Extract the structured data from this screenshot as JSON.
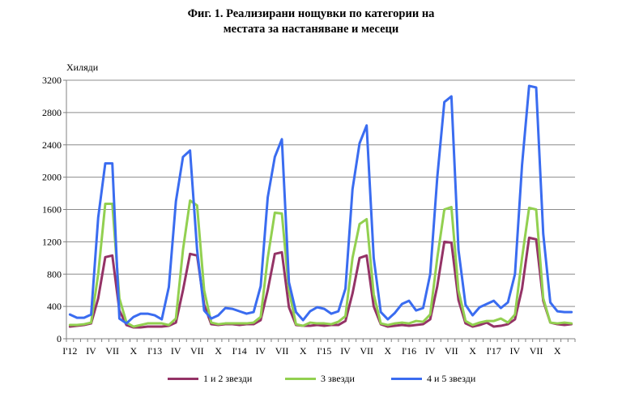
{
  "title_line1": "Фиг. 1. Реализирани нощувки по категории на",
  "title_line2": "местата за настаняване и месеци",
  "chart_data": {
    "type": "line",
    "ylabel": "Хиляди",
    "ylim": [
      0,
      3200
    ],
    "yticks": [
      0,
      400,
      800,
      1200,
      1600,
      2000,
      2400,
      2800,
      3200
    ],
    "grid": true,
    "legend_position": "bottom",
    "x_tick_labels": [
      "І'12",
      "IV",
      "VII",
      "X",
      "І'13",
      "IV",
      "VII",
      "X",
      "І'14",
      "IV",
      "VII",
      "X",
      "І'15",
      "IV",
      "VII",
      "X",
      "І'16",
      "IV",
      "VII",
      "X",
      "І'17",
      "IV",
      "VII",
      "X"
    ],
    "x_months": [
      "2012-01",
      "2012-02",
      "2012-03",
      "2012-04",
      "2012-05",
      "2012-06",
      "2012-07",
      "2012-08",
      "2012-09",
      "2012-10",
      "2012-11",
      "2012-12",
      "2013-01",
      "2013-02",
      "2013-03",
      "2013-04",
      "2013-05",
      "2013-06",
      "2013-07",
      "2013-08",
      "2013-09",
      "2013-10",
      "2013-11",
      "2013-12",
      "2014-01",
      "2014-02",
      "2014-03",
      "2014-04",
      "2014-05",
      "2014-06",
      "2014-07",
      "2014-08",
      "2014-09",
      "2014-10",
      "2014-11",
      "2014-12",
      "2015-01",
      "2015-02",
      "2015-03",
      "2015-04",
      "2015-05",
      "2015-06",
      "2015-07",
      "2015-08",
      "2015-09",
      "2015-10",
      "2015-11",
      "2015-12",
      "2016-01",
      "2016-02",
      "2016-03",
      "2016-04",
      "2016-05",
      "2016-06",
      "2016-07",
      "2016-08",
      "2016-09",
      "2016-10",
      "2016-11",
      "2016-12",
      "2017-01",
      "2017-02",
      "2017-03",
      "2017-04",
      "2017-05",
      "2017-06",
      "2017-07",
      "2017-08",
      "2017-09",
      "2017-10",
      "2017-11",
      "2017-12"
    ],
    "series": [
      {
        "name": "1 и 2 звезди",
        "color": "#943366",
        "values": [
          150,
          160,
          170,
          190,
          500,
          1010,
          1030,
          350,
          170,
          140,
          140,
          150,
          150,
          150,
          160,
          200,
          600,
          1050,
          1030,
          420,
          180,
          170,
          180,
          180,
          170,
          180,
          180,
          230,
          600,
          1050,
          1070,
          390,
          170,
          160,
          160,
          170,
          160,
          170,
          170,
          220,
          560,
          1000,
          1030,
          400,
          180,
          150,
          160,
          170,
          160,
          170,
          180,
          240,
          650,
          1200,
          1190,
          480,
          190,
          150,
          170,
          200,
          150,
          160,
          180,
          240,
          620,
          1250,
          1230,
          470,
          200,
          180,
          170,
          180
        ]
      },
      {
        "name": "3 звезди",
        "color": "#92D050",
        "values": [
          170,
          170,
          180,
          200,
          800,
          1670,
          1670,
          500,
          200,
          150,
          170,
          190,
          190,
          190,
          170,
          250,
          1100,
          1710,
          1650,
          600,
          200,
          180,
          190,
          190,
          190,
          190,
          200,
          270,
          1000,
          1560,
          1550,
          600,
          180,
          160,
          200,
          190,
          190,
          180,
          210,
          280,
          1000,
          1420,
          1480,
          550,
          190,
          170,
          190,
          200,
          190,
          220,
          210,
          300,
          1000,
          1600,
          1630,
          600,
          220,
          170,
          200,
          220,
          220,
          250,
          200,
          300,
          1000,
          1620,
          1600,
          500,
          200,
          190,
          200,
          190
        ]
      },
      {
        "name": "4 и 5 звезди",
        "color": "#3A6CF0",
        "values": [
          300,
          260,
          260,
          300,
          1500,
          2170,
          2170,
          250,
          190,
          270,
          310,
          310,
          290,
          240,
          640,
          1700,
          2250,
          2330,
          1100,
          350,
          250,
          290,
          380,
          370,
          340,
          310,
          330,
          650,
          1750,
          2250,
          2470,
          700,
          330,
          230,
          340,
          390,
          370,
          310,
          340,
          620,
          1850,
          2420,
          2640,
          1000,
          330,
          240,
          320,
          430,
          470,
          350,
          380,
          800,
          2000,
          2930,
          3000,
          1100,
          420,
          290,
          390,
          430,
          470,
          380,
          450,
          800,
          2150,
          3130,
          3110,
          1300,
          450,
          340,
          330,
          330
        ]
      }
    ]
  }
}
